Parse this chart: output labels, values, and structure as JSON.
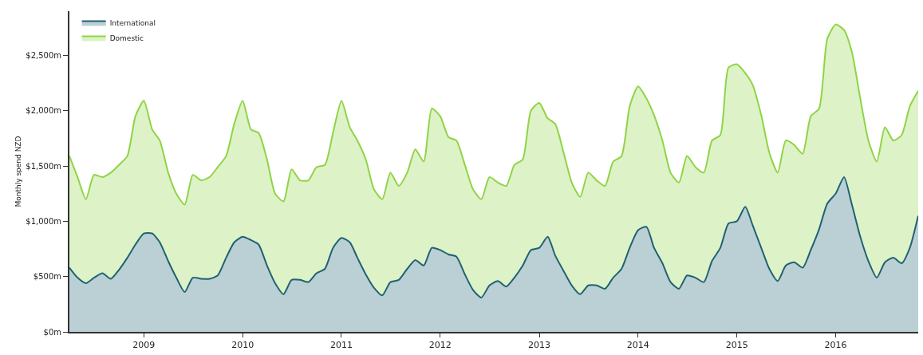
{
  "chart_data": {
    "type": "area",
    "stacked": true,
    "ylabel": "Monthly spend NZD",
    "x": [
      "2008-04",
      "2008-05",
      "2008-06",
      "2008-07",
      "2008-08",
      "2008-09",
      "2008-10",
      "2008-11",
      "2008-12",
      "2009-01",
      "2009-02",
      "2009-03",
      "2009-04",
      "2009-05",
      "2009-06",
      "2009-07",
      "2009-08",
      "2009-09",
      "2009-10",
      "2009-11",
      "2009-12",
      "2010-01",
      "2010-02",
      "2010-03",
      "2010-04",
      "2010-05",
      "2010-06",
      "2010-07",
      "2010-08",
      "2010-09",
      "2010-10",
      "2010-11",
      "2010-12",
      "2011-01",
      "2011-02",
      "2011-03",
      "2011-04",
      "2011-05",
      "2011-06",
      "2011-07",
      "2011-08",
      "2011-09",
      "2011-10",
      "2011-11",
      "2011-12",
      "2012-01",
      "2012-02",
      "2012-03",
      "2012-04",
      "2012-05",
      "2012-06",
      "2012-07",
      "2012-08",
      "2012-09",
      "2012-10",
      "2012-11",
      "2012-12",
      "2013-01",
      "2013-02",
      "2013-03",
      "2013-04",
      "2013-05",
      "2013-06",
      "2013-07",
      "2013-08",
      "2013-09",
      "2013-10",
      "2013-11",
      "2013-12",
      "2014-01",
      "2014-02",
      "2014-03",
      "2014-04",
      "2014-05",
      "2014-06",
      "2014-07",
      "2014-08",
      "2014-09",
      "2014-10",
      "2014-11",
      "2014-12",
      "2015-01",
      "2015-02",
      "2015-03",
      "2015-04",
      "2015-05",
      "2015-06",
      "2015-07",
      "2015-08",
      "2015-09",
      "2015-10",
      "2015-11",
      "2015-12",
      "2016-01",
      "2016-02",
      "2016-03",
      "2016-04",
      "2016-05",
      "2016-06",
      "2016-07",
      "2016-08",
      "2016-09",
      "2016-10",
      "2016-11"
    ],
    "series": [
      {
        "name": "International",
        "color": "#1f6272",
        "values": [
          580,
          490,
          440,
          490,
          530,
          480,
          560,
          670,
          790,
          890,
          890,
          810,
          640,
          490,
          360,
          490,
          480,
          480,
          510,
          670,
          810,
          860,
          830,
          790,
          600,
          440,
          340,
          470,
          470,
          450,
          530,
          570,
          760,
          850,
          810,
          670,
          520,
          400,
          330,
          450,
          470,
          570,
          650,
          600,
          760,
          740,
          700,
          680,
          520,
          380,
          310,
          420,
          460,
          410,
          490,
          600,
          740,
          760,
          860,
          690,
          550,
          420,
          340,
          420,
          420,
          390,
          490,
          570,
          760,
          920,
          950,
          760,
          620,
          450,
          390,
          510,
          490,
          450,
          640,
          760,
          980,
          1000,
          1130,
          960,
          760,
          570,
          460,
          600,
          630,
          580,
          740,
          930,
          1160,
          1250,
          1400,
          1150,
          860,
          640,
          490,
          630,
          670,
          620,
          760,
          1050
        ]
      },
      {
        "name": "Domestic",
        "color": "#8fd444",
        "values": [
          1010,
          910,
          760,
          930,
          870,
          960,
          950,
          920,
          1160,
          1200,
          940,
          920,
          800,
          760,
          790,
          930,
          890,
          920,
          980,
          920,
          1070,
          1230,
          1000,
          1010,
          960,
          810,
          840,
          1000,
          900,
          920,
          960,
          940,
          1040,
          1240,
          1040,
          1060,
          1040,
          890,
          870,
          990,
          850,
          870,
          1000,
          940,
          1260,
          1210,
          1060,
          1050,
          990,
          910,
          890,
          980,
          890,
          910,
          1020,
          960,
          1260,
          1310,
          1070,
          1190,
          1070,
          930,
          880,
          1020,
          950,
          930,
          1050,
          1020,
          1280,
          1300,
          1160,
          1200,
          1110,
          990,
          960,
          1080,
          1000,
          990,
          1090,
          1020,
          1410,
          1420,
          1210,
          1270,
          1200,
          1050,
          980,
          1130,
          1060,
          1030,
          1210,
          1090,
          1490,
          1530,
          1330,
          1380,
          1250,
          1090,
          1050,
          1220,
          1060,
          1160,
          1280,
          1130
        ]
      }
    ],
    "xlim": [
      "2008-04",
      "2016-11"
    ],
    "xticks": [
      "2009",
      "2010",
      "2011",
      "2012",
      "2013",
      "2014",
      "2015",
      "2016"
    ],
    "ylim": [
      0,
      2900
    ],
    "yticks": [
      {
        "value": 0,
        "label": "$0m"
      },
      {
        "value": 500,
        "label": "$500m"
      },
      {
        "value": 1000,
        "label": "$1,000m"
      },
      {
        "value": 1500,
        "label": "$1,500m"
      },
      {
        "value": 2000,
        "label": "$2,000m"
      },
      {
        "value": 2500,
        "label": "$2,500m"
      }
    ],
    "legend": "top left",
    "marker": "none"
  }
}
